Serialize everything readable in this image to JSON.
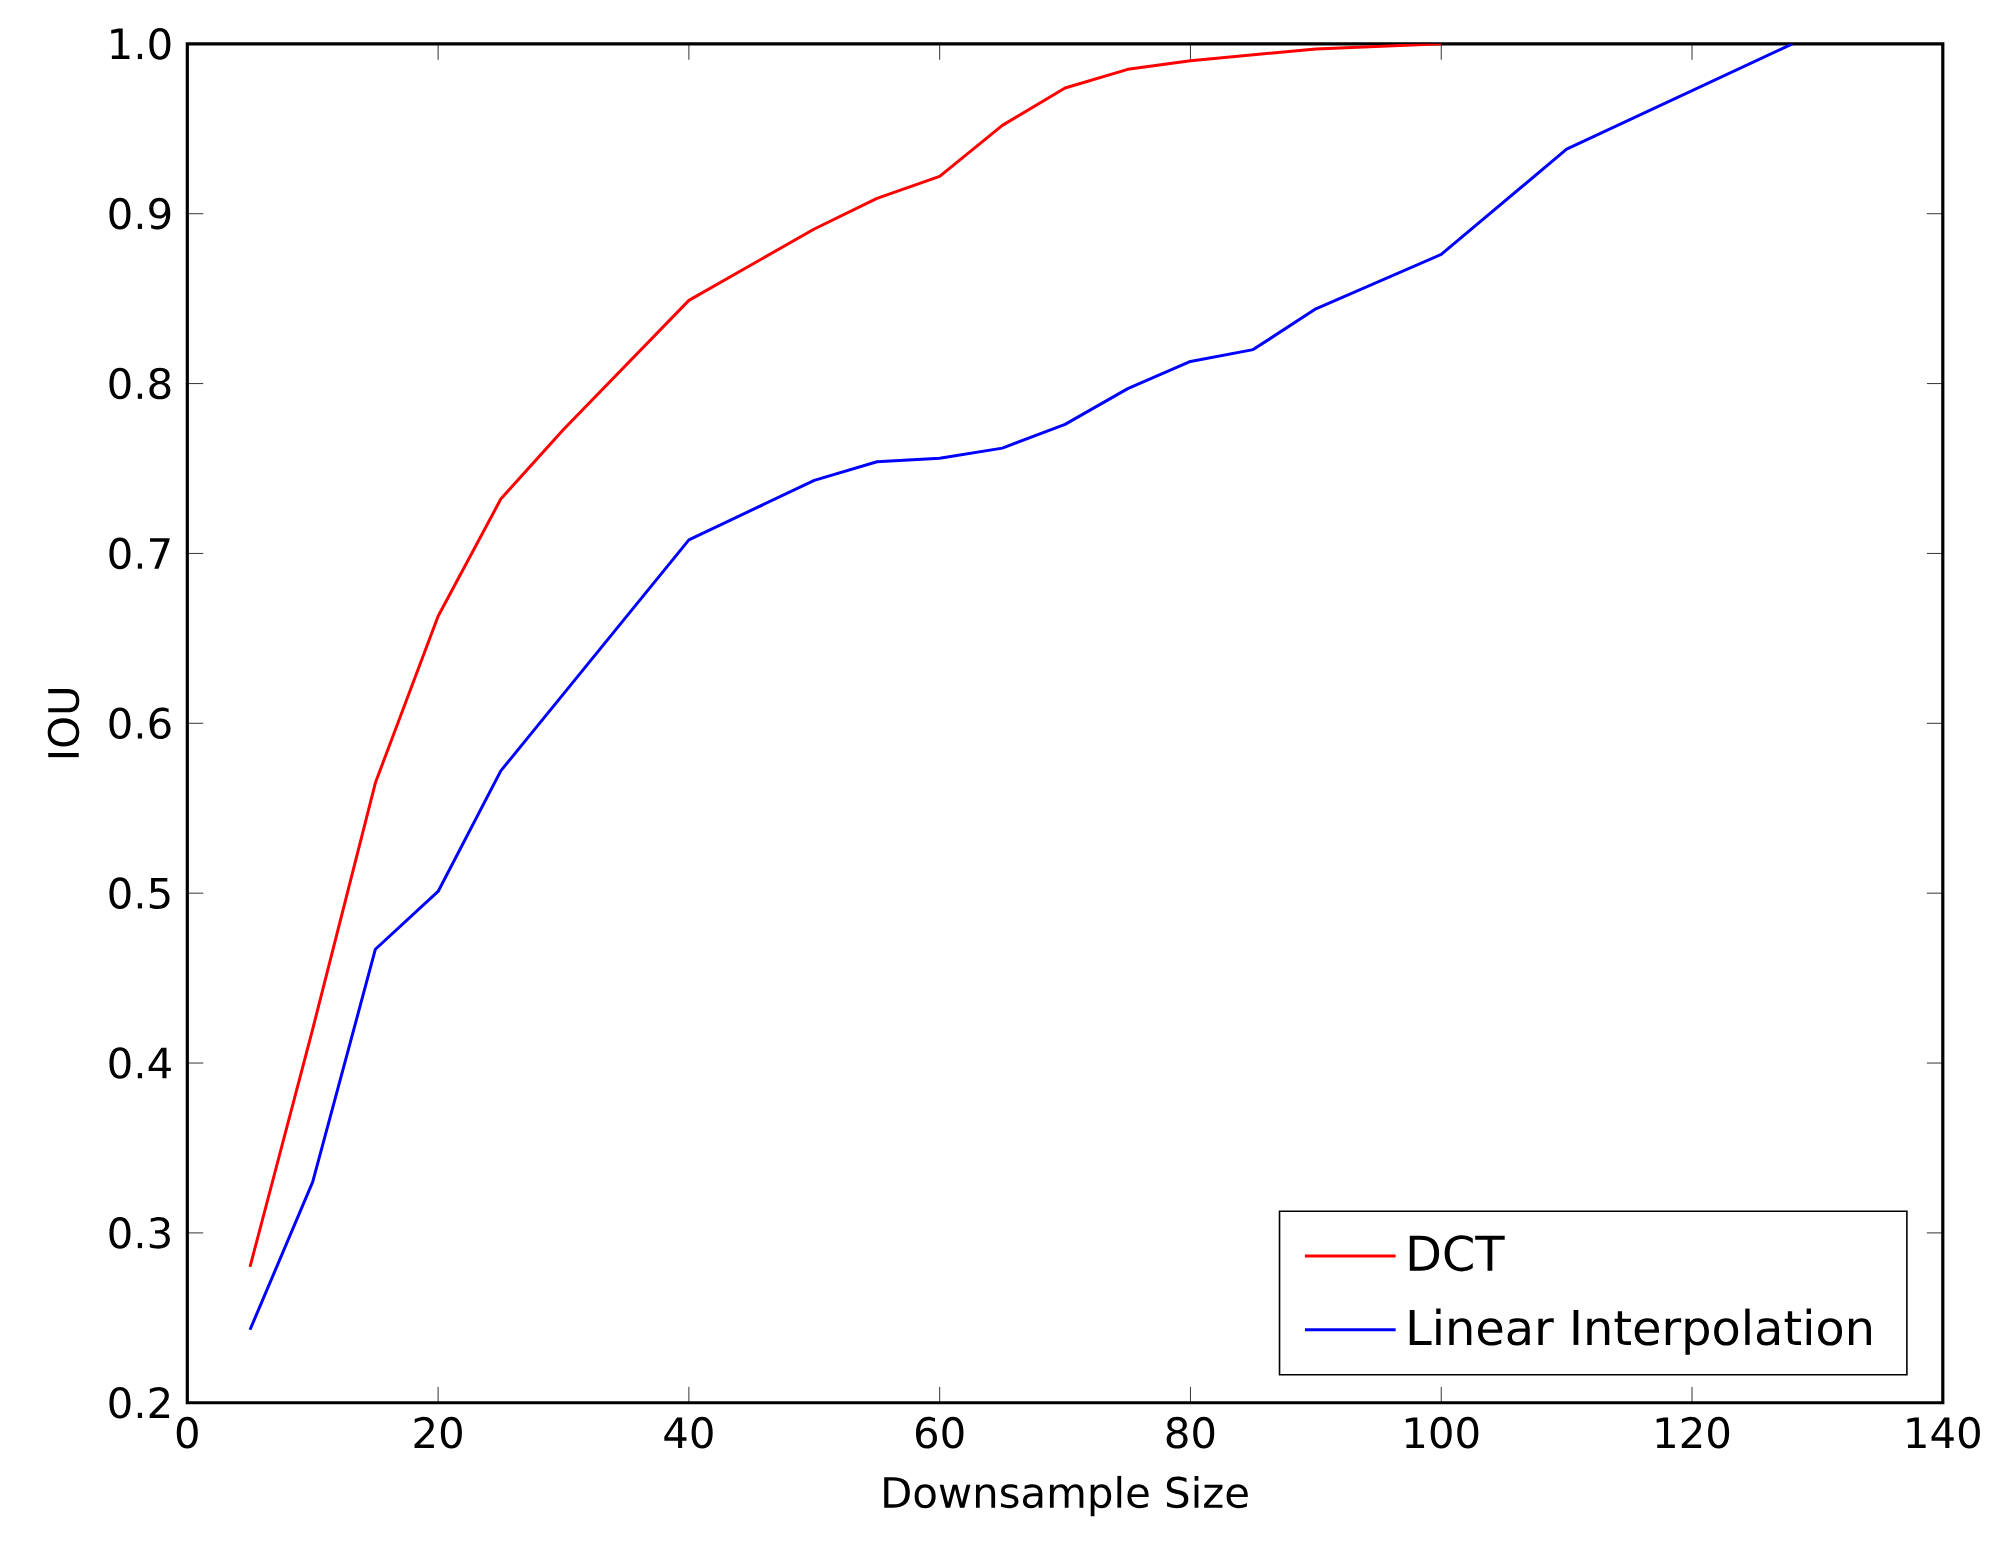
{
  "chart_data": {
    "type": "line",
    "xlabel": "Downsample Size",
    "ylabel": "IOU",
    "xlim": [
      0,
      140
    ],
    "ylim": [
      0.2,
      1.0
    ],
    "xticks": [
      0,
      20,
      40,
      60,
      80,
      100,
      120,
      140
    ],
    "yticks": [
      0.2,
      0.3,
      0.4,
      0.5,
      0.6,
      0.7,
      0.8,
      0.9,
      {
        "value": 1,
        "label": "1.0"
      }
    ],
    "legend": "bottom right",
    "marker": "none",
    "line_style": "solid",
    "grid": false,
    "series": [
      {
        "name": "DCT",
        "color": "#ff0000",
        "x": [
          5,
          10,
          15,
          20,
          25,
          30,
          40,
          50,
          55,
          60,
          65,
          70,
          75,
          80,
          90,
          100
        ],
        "values": [
          0.28,
          0.42,
          0.565,
          0.663,
          0.732,
          0.773,
          0.849,
          0.891,
          0.909,
          0.922,
          0.952,
          0.974,
          0.985,
          0.99,
          0.997,
          1.0
        ]
      },
      {
        "name": "Linear Interpolation",
        "color": "#0000ff",
        "x": [
          5,
          10,
          15,
          20,
          25,
          40,
          50,
          55,
          60,
          65,
          70,
          75,
          80,
          85,
          90,
          100,
          110,
          128
        ],
        "values": [
          0.243,
          0.33,
          0.467,
          0.501,
          0.572,
          0.708,
          0.743,
          0.754,
          0.756,
          0.762,
          0.776,
          0.797,
          0.813,
          0.82,
          0.844,
          0.876,
          0.938,
          1.0
        ]
      }
    ]
  }
}
